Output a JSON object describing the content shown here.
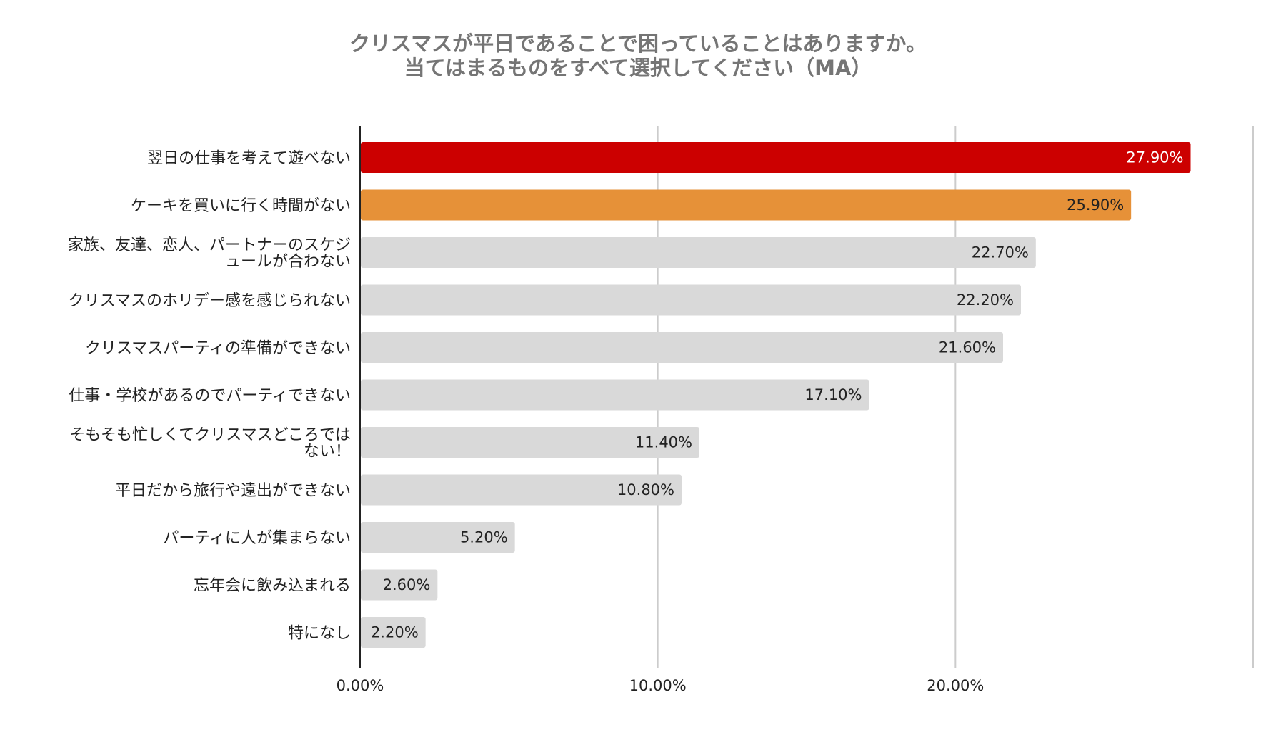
{
  "chart_data": {
    "type": "bar",
    "orientation": "horizontal",
    "title_lines": [
      "クリスマスが平日であることで困っていることはありますか。",
      "当てはまるものをすべて選択してください（MA）"
    ],
    "categories": [
      [
        "翌日の仕事を考えて遊べない"
      ],
      [
        "ケーキを買いに行く時間がない"
      ],
      [
        "家族、友達、恋人、パートナーのスケジ",
        "ュールが合わない"
      ],
      [
        "クリスマスのホリデー感を感じられない"
      ],
      [
        "クリスマスパーティの準備ができない"
      ],
      [
        "仕事・学校があるのでパーティできない"
      ],
      [
        "そもそも忙しくてクリスマスどころでは",
        "ない！"
      ],
      [
        "平日だから旅行や遠出ができない"
      ],
      [
        "パーティに人が集まらない"
      ],
      [
        "忘年会に飲み込まれる"
      ],
      [
        "特になし"
      ]
    ],
    "values": [
      27.9,
      25.9,
      22.7,
      22.2,
      21.6,
      17.1,
      11.4,
      10.8,
      5.2,
      2.6,
      2.2
    ],
    "value_labels": [
      "27.90%",
      "25.90%",
      "22.70%",
      "22.20%",
      "21.60%",
      "17.10%",
      "11.40%",
      "10.80%",
      "5.20%",
      "2.60%",
      "2.20%"
    ],
    "bar_colors": [
      "#cc0000",
      "#e69138",
      "#d9d9d9",
      "#d9d9d9",
      "#d9d9d9",
      "#d9d9d9",
      "#d9d9d9",
      "#d9d9d9",
      "#d9d9d9",
      "#d9d9d9",
      "#d9d9d9"
    ],
    "value_label_colors": [
      "#ffffff",
      "#222222",
      "#222222",
      "#222222",
      "#222222",
      "#222222",
      "#222222",
      "#222222",
      "#222222",
      "#222222",
      "#222222"
    ],
    "xlim": [
      0,
      30
    ],
    "xticks": [
      0,
      10,
      20
    ],
    "xtick_labels": [
      "0.00%",
      "10.00%",
      "20.00%"
    ],
    "grid": true,
    "grid_color": "#cccccc",
    "legend": false
  }
}
